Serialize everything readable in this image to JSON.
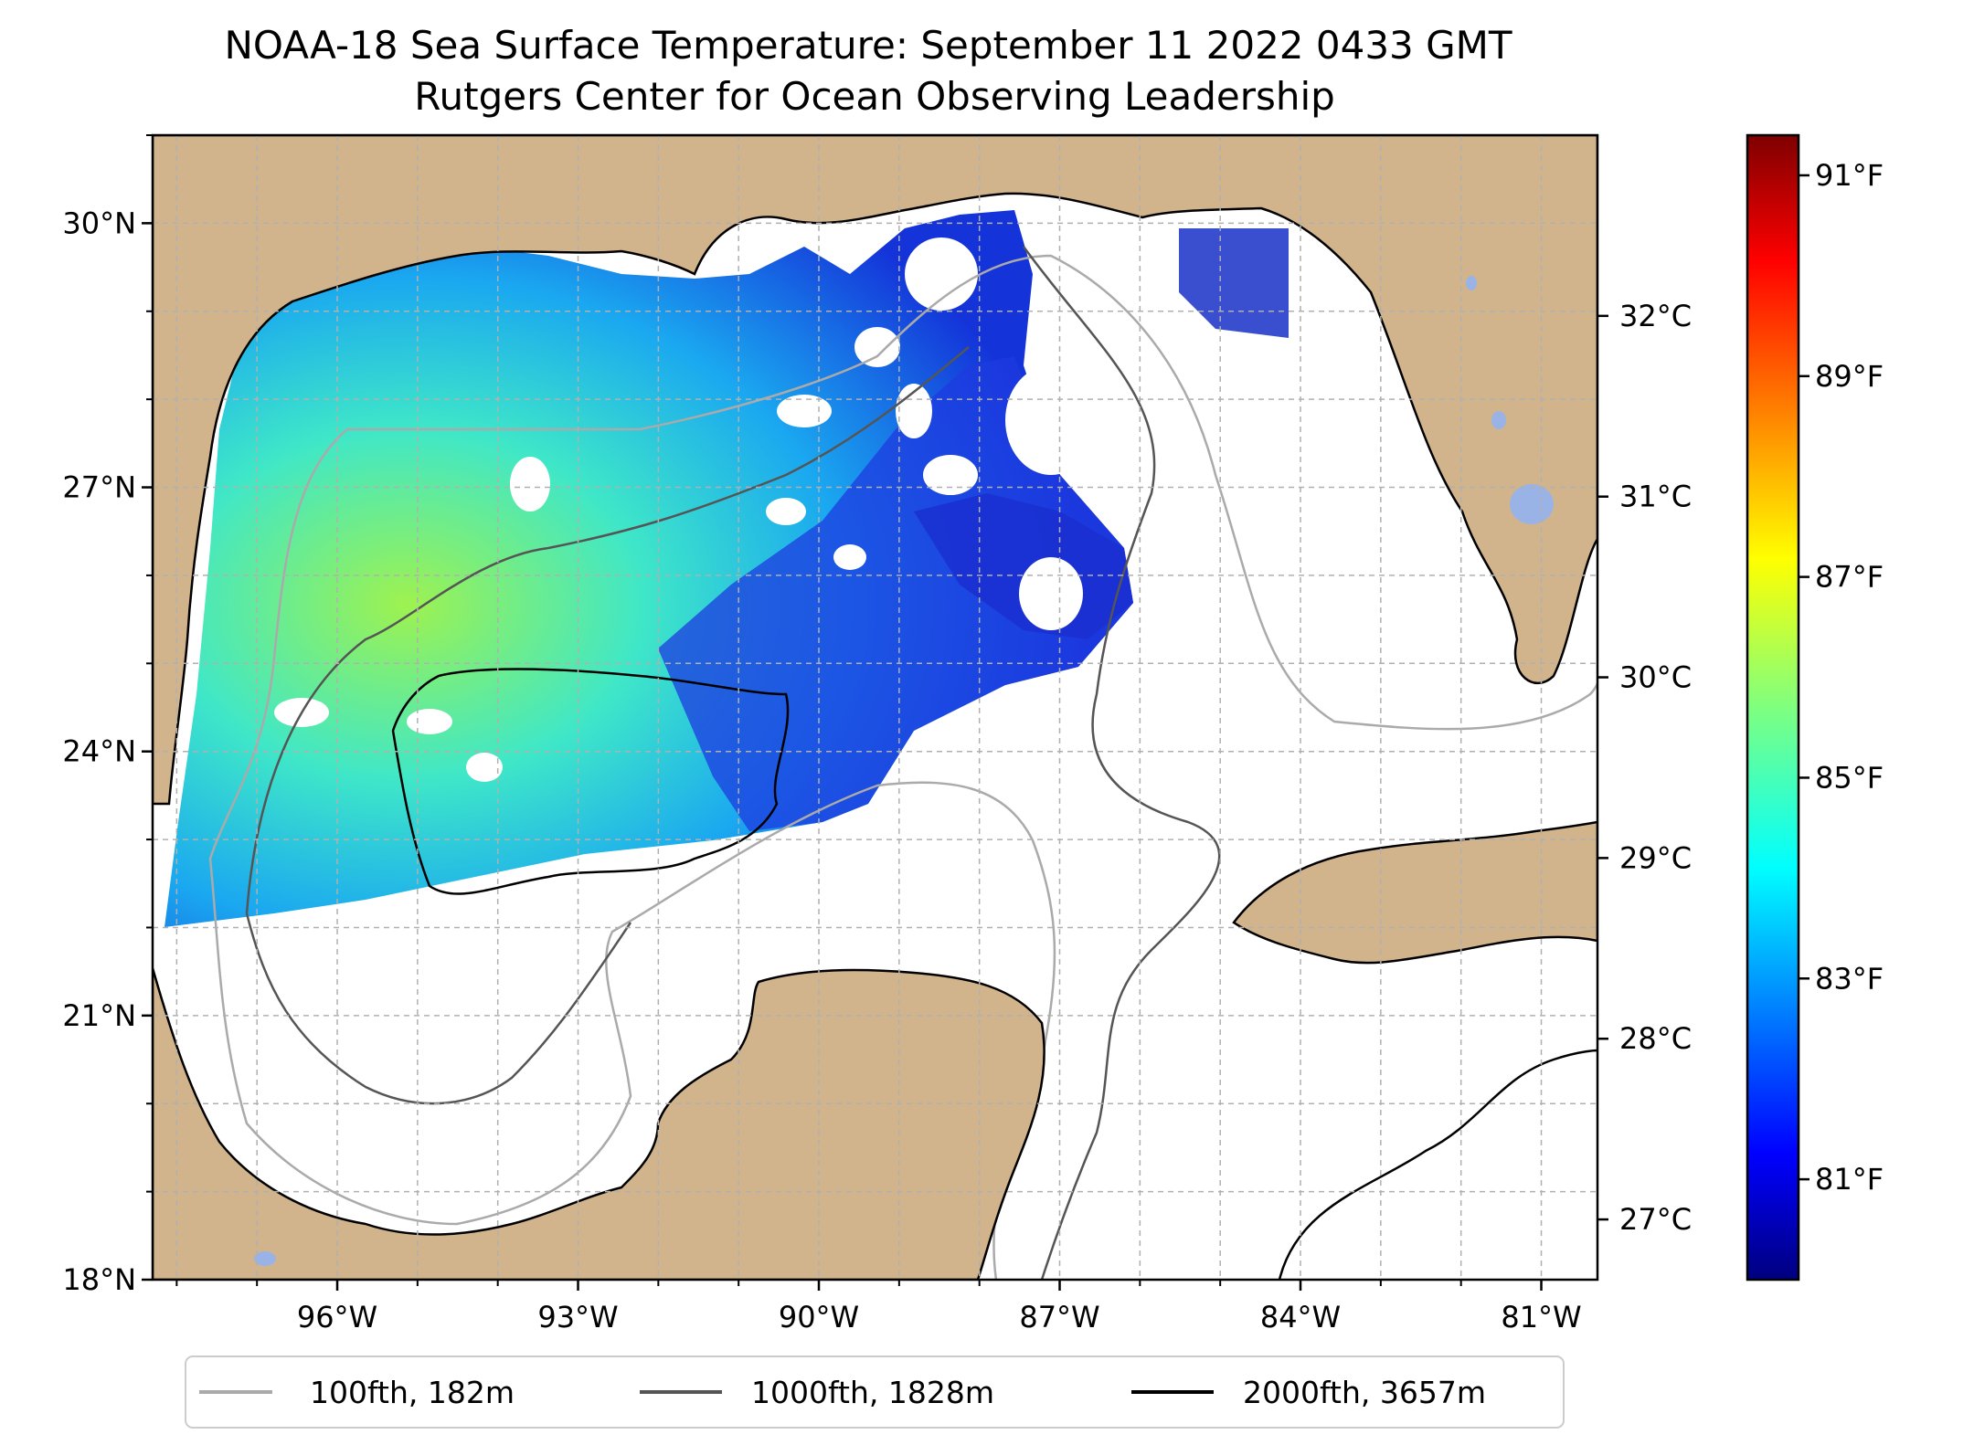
{
  "title": {
    "line1": "NOAA-18 Sea Surface Temperature: September 11 2022 0433 GMT",
    "line2": "Rutgers Center for Ocean Observing Leadership"
  },
  "map": {
    "lon_range": [
      -98.3,
      -80.3
    ],
    "lat_range": [
      18.0,
      31.0
    ],
    "lon_ticks": [
      -96,
      -93,
      -90,
      -87,
      -84,
      -81
    ],
    "lon_tick_labels": [
      "96°W",
      "93°W",
      "90°W",
      "87°W",
      "84°W",
      "81°W"
    ],
    "lat_ticks": [
      18,
      21,
      24,
      27,
      30
    ],
    "lat_tick_labels": [
      "18°N",
      "21°N",
      "24°N",
      "27°N",
      "30°N"
    ],
    "gridlines": true,
    "land_color": "#d2b48c",
    "lake_color": "#99b3e6"
  },
  "colorbar": {
    "colormap": "jet",
    "range_f": [
      80.0,
      91.4
    ],
    "celsius_ticks": [
      "27°C",
      "28°C",
      "29°C",
      "30°C",
      "31°C",
      "32°C"
    ],
    "fahrenheit_ticks": [
      "81°F",
      "83°F",
      "85°F",
      "87°F",
      "89°F",
      "91°F"
    ]
  },
  "legend": {
    "placement": "bottom-center",
    "items": [
      {
        "label": "100fth, 182m",
        "color": "#aaaaaa"
      },
      {
        "label": "1000fth, 1828m",
        "color": "#555555"
      },
      {
        "label": "2000fth, 3657m",
        "color": "#000000"
      }
    ]
  }
}
